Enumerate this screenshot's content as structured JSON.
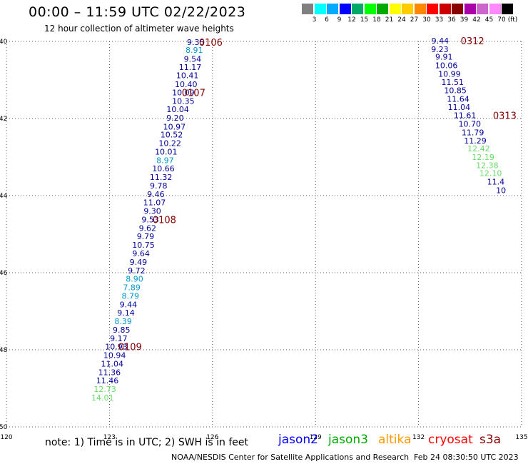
{
  "header": {
    "title": "00:00 – 11:59 UTC 02/22/2023",
    "subtitle": "12 hour collection of altimeter wave heights"
  },
  "colorbar": {
    "unit": "(ft)",
    "colors": [
      "#808080",
      "#00ffff",
      "#00aaff",
      "#0000ff",
      "#00aa66",
      "#00ff00",
      "#00aa00",
      "#ffff00",
      "#ffcc00",
      "#ff8800",
      "#ff0000",
      "#cc0000",
      "#880000",
      "#aa00aa",
      "#cc66cc",
      "#ff88ff",
      "#000000"
    ],
    "labels": [
      "3",
      "6",
      "9",
      "12",
      "15",
      "18",
      "21",
      "24",
      "27",
      "30",
      "33",
      "36",
      "39",
      "42",
      "45",
      "70"
    ]
  },
  "notes": {
    "text": "note: 1) Time is in UTC; 2) SWH is in feet"
  },
  "legend": [
    {
      "name": "jason2",
      "color": "#0000ff"
    },
    {
      "name": "jason3",
      "color": "#00aa00"
    },
    {
      "name": "altika",
      "color": "#ff9900"
    },
    {
      "name": "cryosat",
      "color": "#ff0000"
    },
    {
      "name": "s3a",
      "color": "#880000"
    }
  ],
  "footer": {
    "credit": "NOAA/NESDIS Center for Satellite Applications and Research",
    "timestamp": "Feb 24 08:30:50 UTC 2023"
  },
  "chart_data": {
    "type": "scatter",
    "xlim": [
      120,
      135
    ],
    "ylim": [
      -50,
      -40
    ],
    "x_ticks": [
      "120",
      "123",
      "126",
      "129",
      "132",
      "135"
    ],
    "y_ticks": [
      "-40",
      "-42",
      "-44",
      "-46",
      "-48",
      "-50"
    ],
    "x_tick_values": [
      120,
      123,
      126,
      129,
      132,
      135
    ],
    "y_tick_values": [
      -40,
      -42,
      -44,
      -46,
      -48,
      -50
    ],
    "grid": true,
    "tracks": [
      {
        "color": "#000099",
        "points": [
          {
            "x": 125.51,
            "y": -40.02,
            "v": "9.35",
            "c": "#000099"
          },
          {
            "x": 125.47,
            "y": -40.22,
            "v": "8.91",
            "c": "#0099cc"
          },
          {
            "x": 125.42,
            "y": -40.45,
            "v": "9.54",
            "c": "#000099"
          },
          {
            "x": 125.35,
            "y": -40.67,
            "v": "11.17",
            "c": "#000099"
          },
          {
            "x": 125.27,
            "y": -40.88,
            "v": "10.41",
            "c": "#000099"
          },
          {
            "x": 125.23,
            "y": -41.11,
            "v": "10.40",
            "c": "#000099"
          },
          {
            "x": 125.15,
            "y": -41.32,
            "v": "10.09",
            "c": "#000099"
          },
          {
            "x": 125.15,
            "y": -41.55,
            "v": "10.35",
            "c": "#000099"
          },
          {
            "x": 124.99,
            "y": -41.76,
            "v": "10.04",
            "c": "#000099"
          },
          {
            "x": 124.91,
            "y": -41.98,
            "v": "9.20",
            "c": "#000099"
          },
          {
            "x": 124.89,
            "y": -42.21,
            "v": "10.97",
            "c": "#000099"
          },
          {
            "x": 124.81,
            "y": -42.42,
            "v": "10.52",
            "c": "#000099"
          },
          {
            "x": 124.76,
            "y": -42.64,
            "v": "10.22",
            "c": "#000099"
          },
          {
            "x": 124.65,
            "y": -42.86,
            "v": "10.01",
            "c": "#000099"
          },
          {
            "x": 124.62,
            "y": -43.08,
            "v": "8.97",
            "c": "#0099cc"
          },
          {
            "x": 124.57,
            "y": -43.3,
            "v": "10.66",
            "c": "#000099"
          },
          {
            "x": 124.5,
            "y": -43.52,
            "v": "11.32",
            "c": "#000099"
          },
          {
            "x": 124.43,
            "y": -43.74,
            "v": "9.78",
            "c": "#000099"
          },
          {
            "x": 124.35,
            "y": -43.96,
            "v": "9.46",
            "c": "#000099"
          },
          {
            "x": 124.31,
            "y": -44.18,
            "v": "11.07",
            "c": "#000099"
          },
          {
            "x": 124.25,
            "y": -44.4,
            "v": "9.30",
            "c": "#000099"
          },
          {
            "x": 124.19,
            "y": -44.62,
            "v": "9.53",
            "c": "#000099"
          },
          {
            "x": 124.11,
            "y": -44.84,
            "v": "9.62",
            "c": "#000099"
          },
          {
            "x": 124.05,
            "y": -45.06,
            "v": "9.79",
            "c": "#000099"
          },
          {
            "x": 123.99,
            "y": -45.28,
            "v": "10.75",
            "c": "#000099"
          },
          {
            "x": 123.92,
            "y": -45.5,
            "v": "9.64",
            "c": "#000099"
          },
          {
            "x": 123.84,
            "y": -45.72,
            "v": "9.49",
            "c": "#000099"
          },
          {
            "x": 123.79,
            "y": -45.94,
            "v": "9.72",
            "c": "#000099"
          },
          {
            "x": 123.73,
            "y": -46.16,
            "v": "8.90",
            "c": "#0099cc"
          },
          {
            "x": 123.65,
            "y": -46.38,
            "v": "7.89",
            "c": "#0099cc"
          },
          {
            "x": 123.61,
            "y": -46.6,
            "v": "8.79",
            "c": "#0099cc"
          },
          {
            "x": 123.55,
            "y": -46.82,
            "v": "9.44",
            "c": "#000099"
          },
          {
            "x": 123.48,
            "y": -47.04,
            "v": "9.14",
            "c": "#000099"
          },
          {
            "x": 123.4,
            "y": -47.26,
            "v": "8.39",
            "c": "#0099cc"
          },
          {
            "x": 123.35,
            "y": -47.48,
            "v": "9.85",
            "c": "#000099"
          },
          {
            "x": 123.27,
            "y": -47.7,
            "v": "9.17",
            "c": "#000099"
          },
          {
            "x": 123.2,
            "y": -47.92,
            "v": "10.93",
            "c": "#000099"
          },
          {
            "x": 123.15,
            "y": -48.14,
            "v": "10.94",
            "c": "#000099"
          },
          {
            "x": 123.08,
            "y": -48.36,
            "v": "11.04",
            "c": "#000099"
          },
          {
            "x": 123.0,
            "y": -48.58,
            "v": "11.36",
            "c": "#000099"
          },
          {
            "x": 122.94,
            "y": -48.8,
            "v": "11.46",
            "c": "#000099"
          },
          {
            "x": 122.87,
            "y": -49.02,
            "v": "12.73",
            "c": "#66dd66"
          },
          {
            "x": 122.8,
            "y": -49.24,
            "v": "14.01",
            "c": "#66dd66"
          }
        ],
        "time_labels": [
          {
            "x": 125.95,
            "y": -40.02,
            "text": "0106"
          },
          {
            "x": 125.45,
            "y": -41.32,
            "text": "0107"
          },
          {
            "x": 124.6,
            "y": -44.62,
            "text": "0108"
          },
          {
            "x": 123.6,
            "y": -47.92,
            "text": "0109"
          }
        ]
      },
      {
        "color": "#000099",
        "points": [
          {
            "x": 132.63,
            "y": -39.98,
            "v": "9.44",
            "c": "#000099"
          },
          {
            "x": 132.62,
            "y": -40.2,
            "v": "9.23",
            "c": "#000099"
          },
          {
            "x": 132.74,
            "y": -40.4,
            "v": "9.91",
            "c": "#000099"
          },
          {
            "x": 132.81,
            "y": -40.62,
            "v": "10.06",
            "c": "#000099"
          },
          {
            "x": 132.9,
            "y": -40.84,
            "v": "10.99",
            "c": "#000099"
          },
          {
            "x": 132.99,
            "y": -41.06,
            "v": "11.51",
            "c": "#000099"
          },
          {
            "x": 133.07,
            "y": -41.27,
            "v": "10.85",
            "c": "#000099"
          },
          {
            "x": 133.15,
            "y": -41.49,
            "v": "11.64",
            "c": "#000099"
          },
          {
            "x": 133.18,
            "y": -41.7,
            "v": "11.04",
            "c": "#000099"
          },
          {
            "x": 133.35,
            "y": -41.92,
            "v": "11.61",
            "c": "#000099"
          },
          {
            "x": 133.49,
            "y": -42.14,
            "v": "10.70",
            "c": "#000099"
          },
          {
            "x": 133.58,
            "y": -42.36,
            "v": "11.79",
            "c": "#000099"
          },
          {
            "x": 133.65,
            "y": -42.57,
            "v": "11.29",
            "c": "#000099"
          },
          {
            "x": 133.75,
            "y": -42.78,
            "v": "12.42",
            "c": "#66dd66"
          },
          {
            "x": 133.88,
            "y": -43.0,
            "v": "12.19",
            "c": "#66dd66"
          },
          {
            "x": 134.0,
            "y": -43.21,
            "v": "12.38",
            "c": "#66dd66"
          },
          {
            "x": 134.1,
            "y": -43.42,
            "v": "12.10",
            "c": "#66dd66"
          },
          {
            "x": 134.25,
            "y": -43.64,
            "v": "11.4",
            "c": "#000099"
          },
          {
            "x": 134.4,
            "y": -43.86,
            "v": "10",
            "c": "#000099"
          }
        ],
        "time_labels": [
          {
            "x": 133.57,
            "y": -39.98,
            "text": "0312"
          },
          {
            "x": 134.51,
            "y": -41.92,
            "text": "0313"
          }
        ]
      }
    ]
  }
}
